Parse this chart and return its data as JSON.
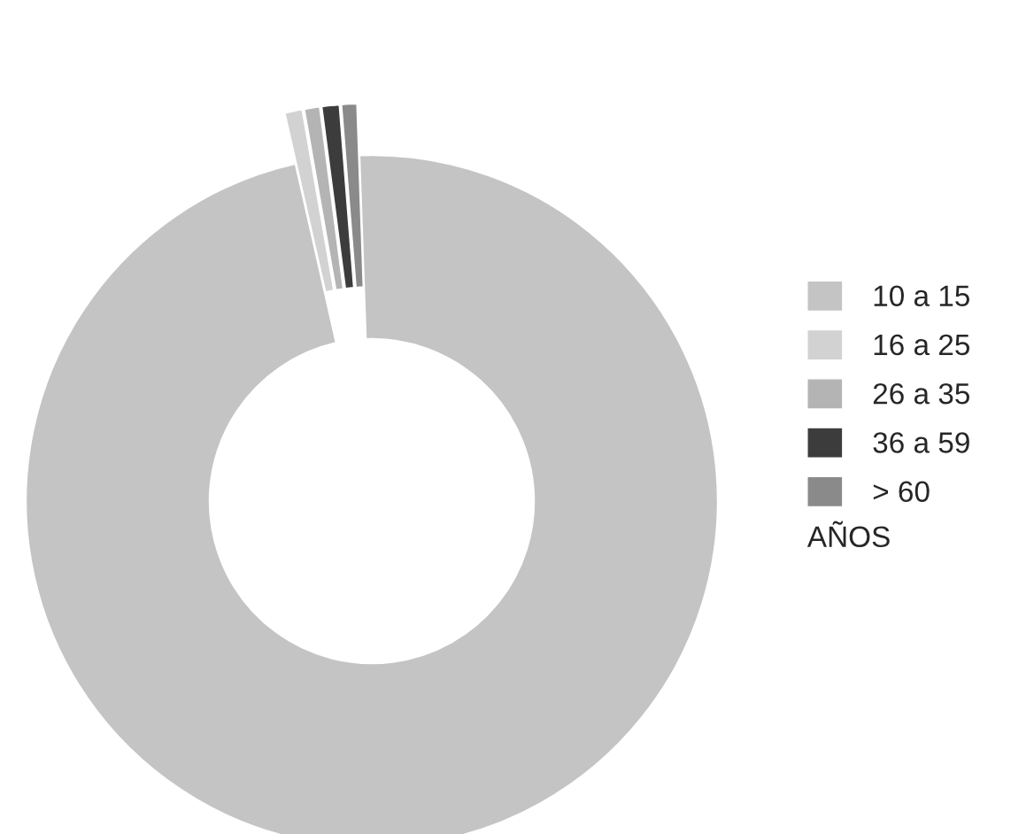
{
  "chart_data": {
    "type": "donut",
    "categories": [
      "10 a 15",
      "16 a 25",
      "26 a 35",
      "36 a 59",
      "> 60"
    ],
    "values": [
      97.0,
      0.8,
      0.7,
      0.8,
      0.7
    ],
    "colors": [
      "#c4c4c4",
      "#d2d2d2",
      "#b4b4b4",
      "#3c3c3c",
      "#8a8a8a"
    ],
    "legend_title": "AÑOS",
    "legend": "right"
  }
}
